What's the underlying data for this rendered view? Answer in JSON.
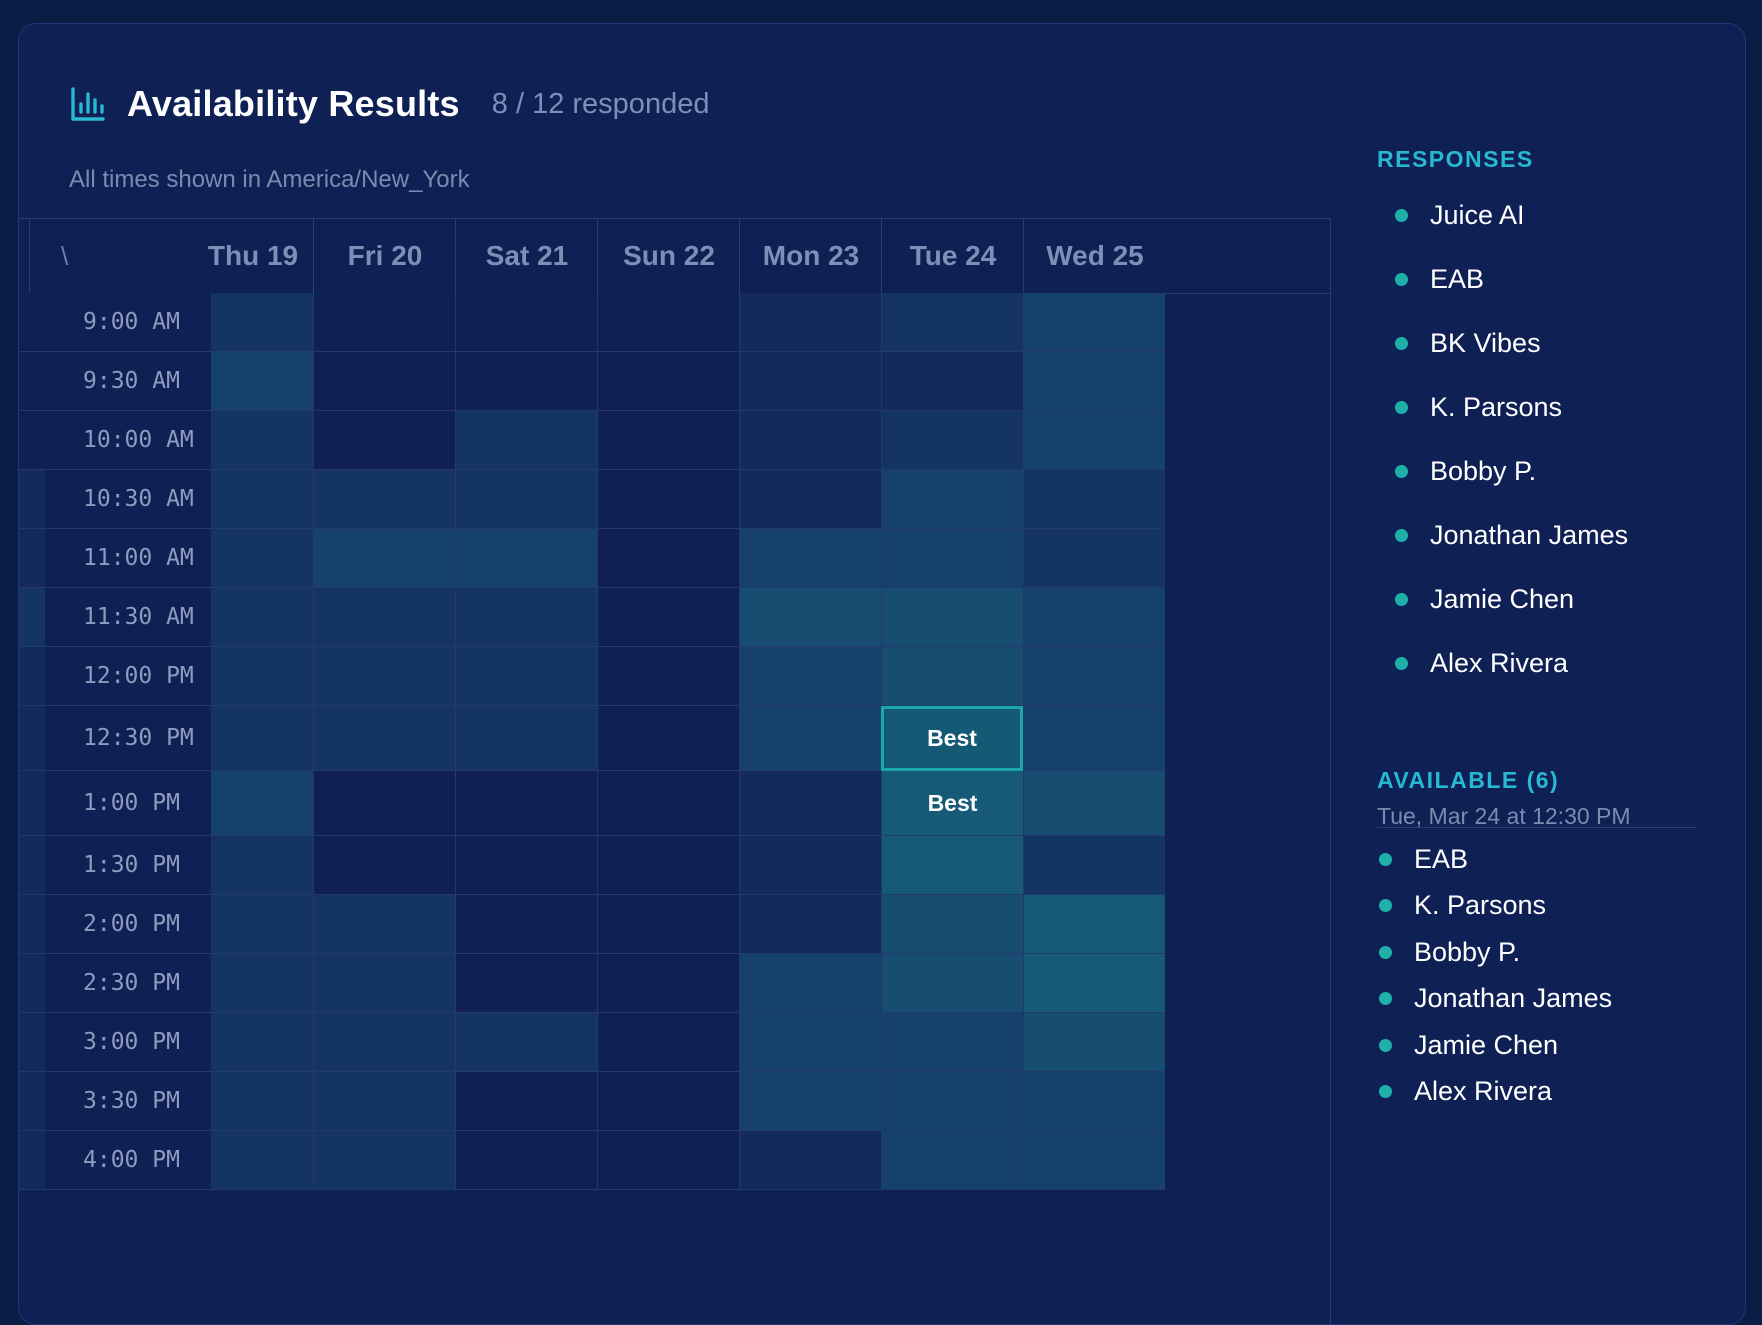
{
  "header": {
    "title": "Availability Results",
    "responded": "8 / 12 responded",
    "timezone_note": "All times shown in America/New_York"
  },
  "grid": {
    "corner_glyph": "\\",
    "days": [
      "Thu 19",
      "Fri 20",
      "Sat 21",
      "Sun 22",
      "Mon 23",
      "Tue 24",
      "Wed 25"
    ],
    "times": [
      "9:00 AM",
      "9:30 AM",
      "10:00 AM",
      "10:30 AM",
      "11:00 AM",
      "11:30 AM",
      "12:00 PM",
      "12:30 PM",
      "1:00 PM",
      "1:30 PM",
      "2:00 PM",
      "2:30 PM",
      "3:00 PM",
      "3:30 PM",
      "4:00 PM"
    ],
    "heat": [
      [
        2,
        0,
        0,
        0,
        1,
        2,
        3
      ],
      [
        3,
        0,
        0,
        0,
        1,
        1,
        3
      ],
      [
        2,
        0,
        2,
        0,
        1,
        2,
        3
      ],
      [
        2,
        2,
        2,
        0,
        1,
        3,
        2
      ],
      [
        2,
        3,
        3,
        0,
        3,
        3,
        2
      ],
      [
        2,
        2,
        2,
        0,
        4,
        4,
        3
      ],
      [
        2,
        2,
        2,
        0,
        3,
        4,
        3
      ],
      [
        2,
        2,
        2,
        0,
        3,
        5,
        3
      ],
      [
        3,
        0,
        0,
        0,
        1,
        5,
        4
      ],
      [
        2,
        0,
        0,
        0,
        1,
        5,
        2
      ],
      [
        2,
        2,
        0,
        0,
        1,
        4,
        5
      ],
      [
        2,
        2,
        0,
        0,
        3,
        4,
        5
      ],
      [
        2,
        2,
        2,
        0,
        3,
        3,
        4
      ],
      [
        2,
        2,
        0,
        0,
        3,
        3,
        3
      ],
      [
        2,
        2,
        0,
        0,
        1,
        3,
        3
      ]
    ],
    "best_label": "Best",
    "best_cells": [
      {
        "row": 7,
        "col": 5,
        "selected": true
      },
      {
        "row": 8,
        "col": 5,
        "selected": false
      }
    ],
    "colors": {
      "accent_teal": "#1aa7a8",
      "dot": "#1fb1a9",
      "section_title": "#27b8d2"
    }
  },
  "sidebar": {
    "responses_title": "RESPONSES",
    "responses": [
      "Juice AI",
      "EAB",
      "BK Vibes",
      "K. Parsons",
      "Bobby P.",
      "Jonathan James",
      "Jamie Chen",
      "Alex Rivera"
    ],
    "available_title": "AVAILABLE (6)",
    "available_slot": "Tue, Mar 24 at 12:30 PM",
    "available": [
      "EAB",
      "K. Parsons",
      "Bobby P.",
      "Jonathan James",
      "Jamie Chen",
      "Alex Rivera"
    ]
  }
}
